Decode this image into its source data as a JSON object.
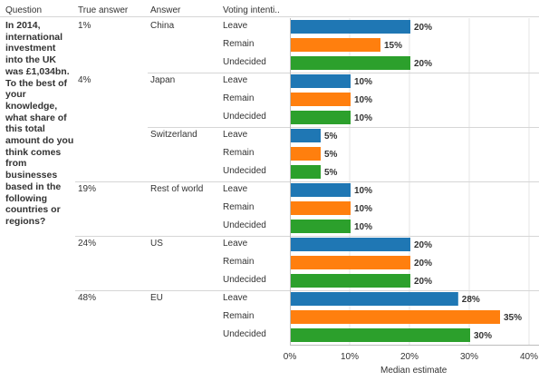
{
  "headers": {
    "question": "Question",
    "true_answer": "True answer",
    "answer": "Answer",
    "voting": "Voting intenti.."
  },
  "question_text": "In 2014, international investment into the UK was £1,034bn. To the best of your knowledge, what share of this total amount do you think comes from businesses based in the following countries or regions?",
  "colors": {
    "Leave": "#1f77b4",
    "Remain": "#ff7f0e",
    "Undecided": "#2ca02c"
  },
  "chart_data": {
    "type": "bar",
    "orientation": "horizontal",
    "xlabel": "Median estimate",
    "xlim": [
      0,
      40
    ],
    "xticks": [
      "0%",
      "10%",
      "20%",
      "30%",
      "40%"
    ],
    "gridlines": true,
    "value_suffix": "%",
    "groups": [
      {
        "true_answer": "1%",
        "answer": "China",
        "rows": [
          {
            "intent": "Leave",
            "value": 20
          },
          {
            "intent": "Remain",
            "value": 15
          },
          {
            "intent": "Undecided",
            "value": 20
          }
        ]
      },
      {
        "true_answer": "4%",
        "answer": "Japan",
        "rows": [
          {
            "intent": "Leave",
            "value": 10
          },
          {
            "intent": "Remain",
            "value": 10
          },
          {
            "intent": "Undecided",
            "value": 10
          }
        ]
      },
      {
        "true_answer": "",
        "answer": "Switzerland",
        "rows": [
          {
            "intent": "Leave",
            "value": 5
          },
          {
            "intent": "Remain",
            "value": 5
          },
          {
            "intent": "Undecided",
            "value": 5
          }
        ]
      },
      {
        "true_answer": "19%",
        "answer": "Rest of world",
        "rows": [
          {
            "intent": "Leave",
            "value": 10
          },
          {
            "intent": "Remain",
            "value": 10
          },
          {
            "intent": "Undecided",
            "value": 10
          }
        ]
      },
      {
        "true_answer": "24%",
        "answer": "US",
        "rows": [
          {
            "intent": "Leave",
            "value": 20
          },
          {
            "intent": "Remain",
            "value": 20
          },
          {
            "intent": "Undecided",
            "value": 20
          }
        ]
      },
      {
        "true_answer": "48%",
        "answer": "EU",
        "rows": [
          {
            "intent": "Leave",
            "value": 28
          },
          {
            "intent": "Remain",
            "value": 35
          },
          {
            "intent": "Undecided",
            "value": 30
          }
        ]
      }
    ]
  }
}
